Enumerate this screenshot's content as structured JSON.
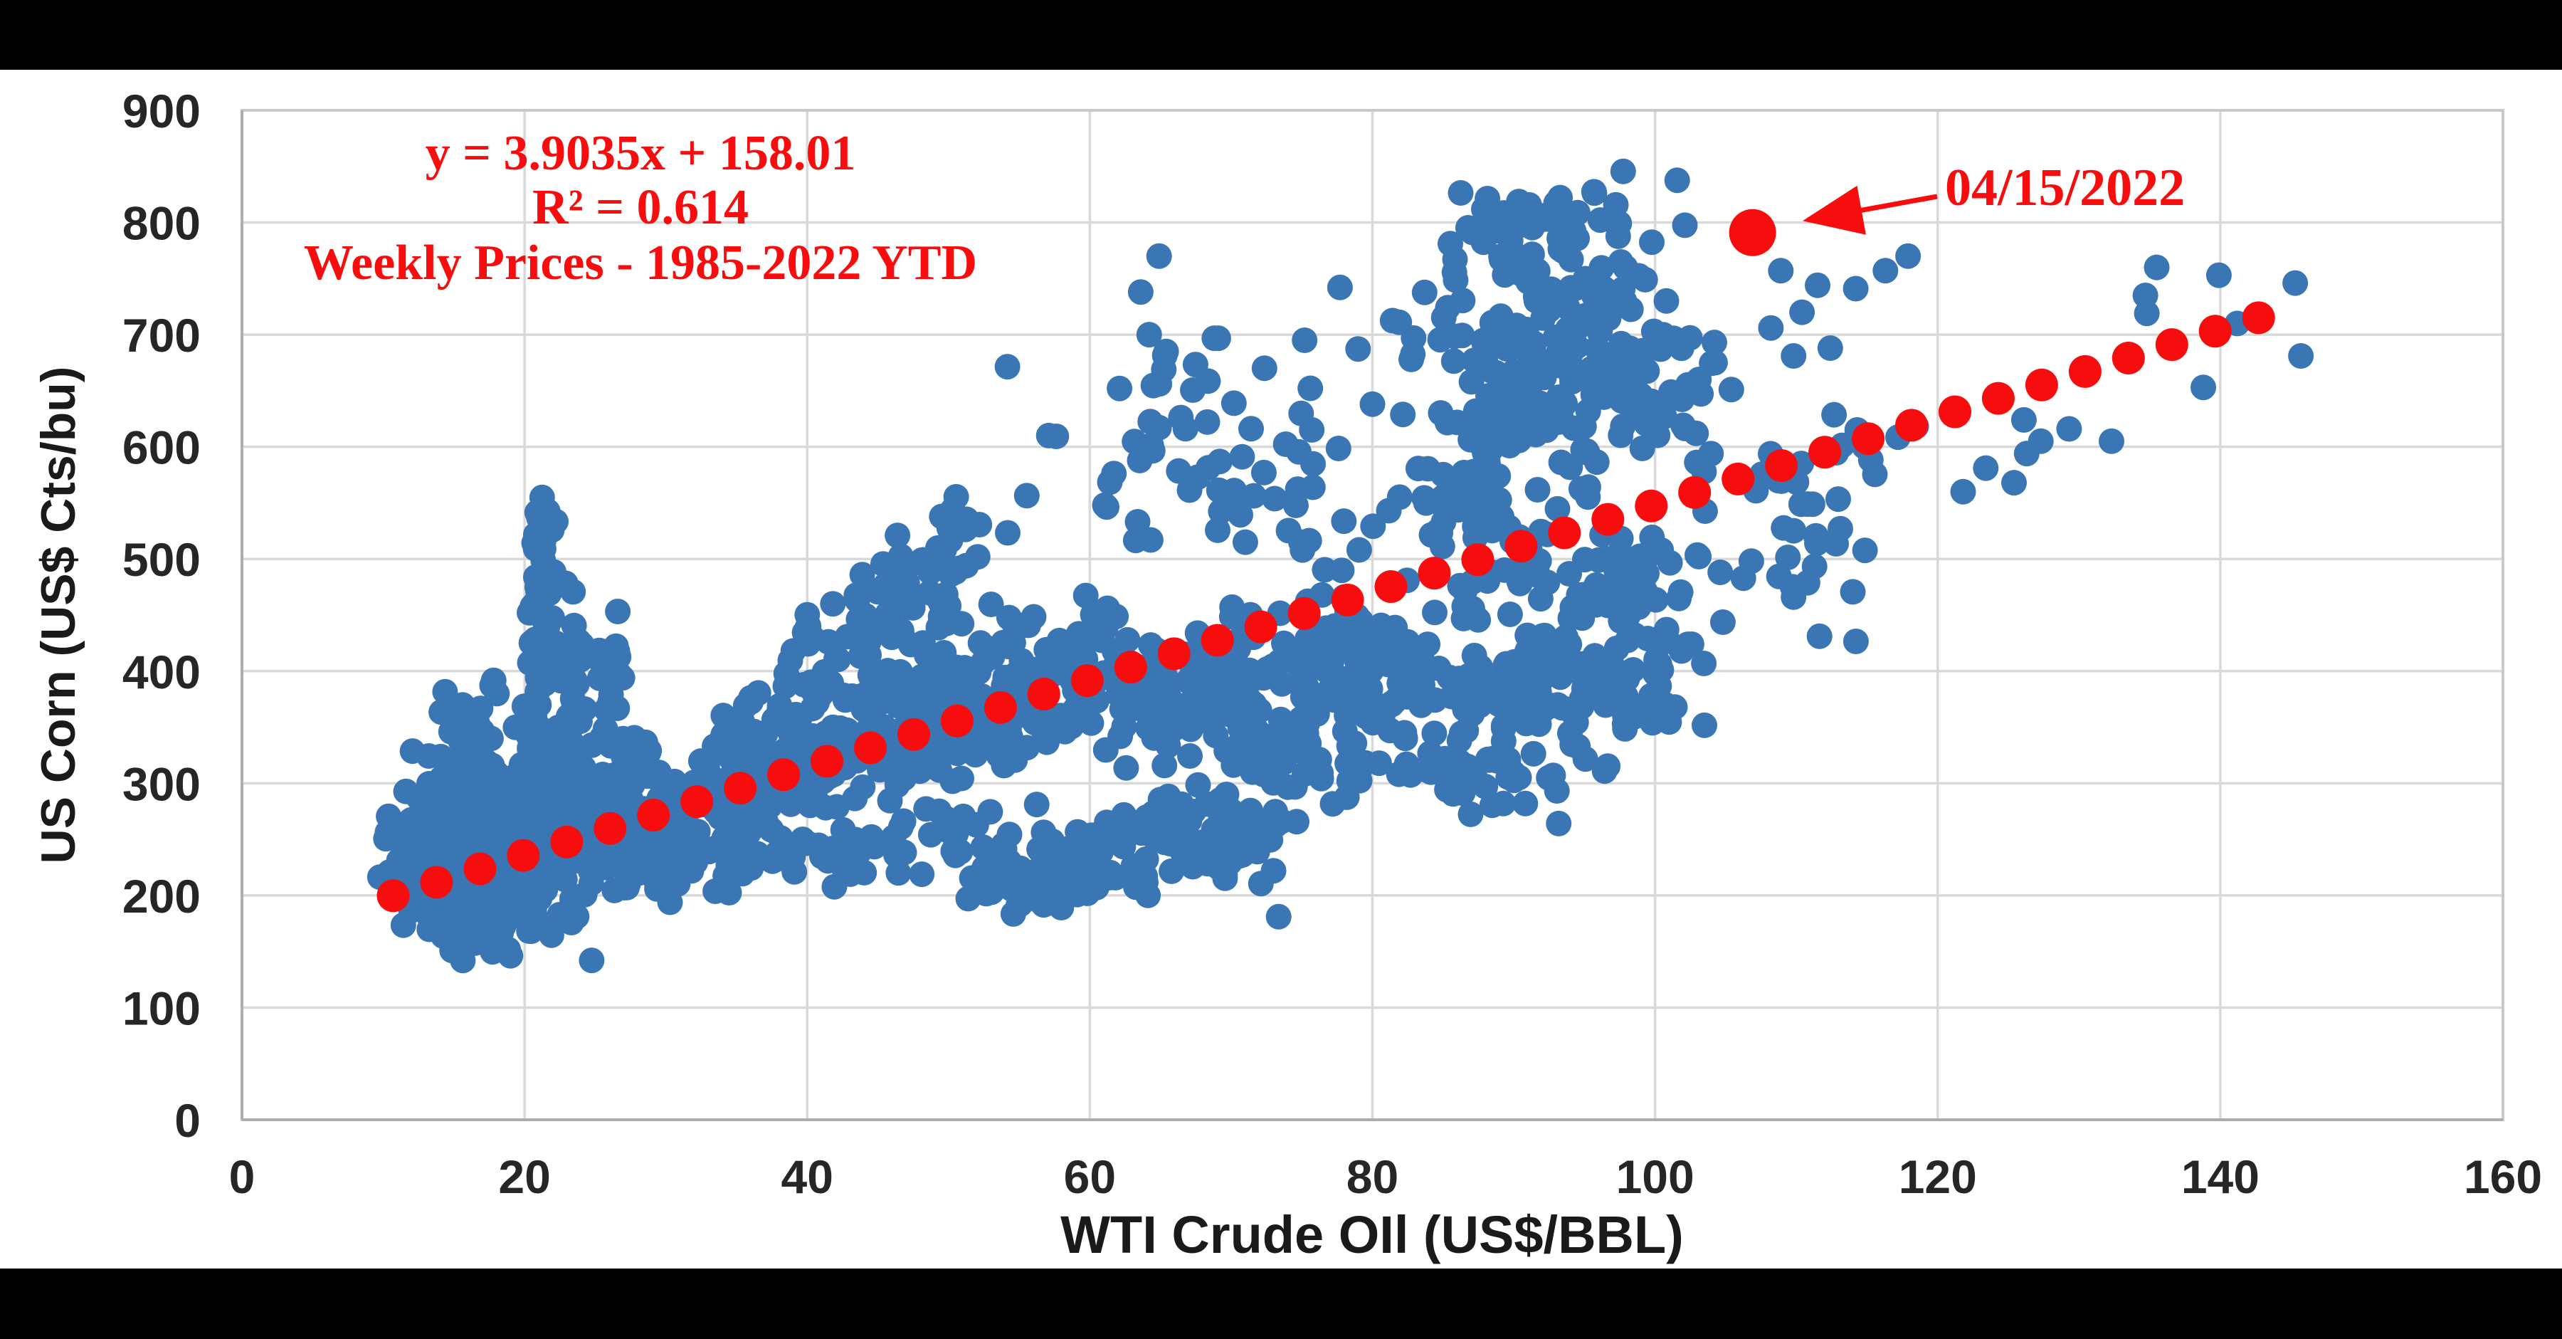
{
  "figure": {
    "background": "#000000",
    "panel_background": "#ffffff"
  },
  "colors": {
    "point_blue": "#3b76b4",
    "accent_red": "#f70d0d",
    "gridline": "#d9d9d9",
    "axis_line": "#b3b3b3",
    "tick_text": "#262626"
  },
  "chart_data": {
    "type": "scatter",
    "title": "",
    "xlabel": "WTI Crude OIl (US$/BBL)",
    "ylabel": "US Corn (US$ Cts/bu)",
    "xlim": [
      0,
      160
    ],
    "ylim": [
      0,
      900
    ],
    "xticks": [
      0,
      20,
      40,
      60,
      80,
      100,
      120,
      140,
      160
    ],
    "yticks": [
      0,
      100,
      200,
      300,
      400,
      500,
      600,
      700,
      800,
      900
    ],
    "grid": true,
    "legend": "none",
    "annotations": {
      "equation": "y = 3.9035x + 158.01",
      "r_squared": "R² = 0.614",
      "caption": "Weekly Prices - 1985-2022 YTD",
      "highlight_label": "04/15/2022"
    },
    "trendline": {
      "slope": 3.9035,
      "intercept": 158.01,
      "x_start": 10.7,
      "x_end": 145.5,
      "dot_step": 3.07
    },
    "highlight_point": {
      "x": 106.9,
      "y": 791,
      "label": "04/15/2022"
    },
    "series_name": "Weekly WTI vs US Corn prices, 1985-2022 YTD",
    "random_seed": 1337,
    "points_explicit": [
      [
        64.9,
        770
      ],
      [
        63.6,
        738
      ],
      [
        64.2,
        700
      ],
      [
        65.4,
        685
      ],
      [
        62.1,
        652
      ],
      [
        80.0,
        638
      ],
      [
        81.9,
        711
      ],
      [
        75.2,
        695
      ],
      [
        108.9,
        757
      ],
      [
        111.5,
        744
      ],
      [
        114.2,
        741
      ],
      [
        110.4,
        720
      ],
      [
        108.2,
        706
      ],
      [
        104.2,
        693
      ],
      [
        103.1,
        660
      ],
      [
        105.4,
        651
      ],
      [
        102.9,
        612
      ],
      [
        109.8,
        681
      ],
      [
        116.3,
        757
      ],
      [
        117.9,
        770
      ],
      [
        112.4,
        688
      ],
      [
        99.3,
        749
      ],
      [
        97.9,
        760
      ],
      [
        96.4,
        741
      ],
      [
        100.8,
        730
      ],
      [
        139.9,
        753
      ],
      [
        145.3,
        746
      ],
      [
        134.7,
        735
      ],
      [
        134.8,
        719
      ],
      [
        145.7,
        681
      ],
      [
        138.8,
        653
      ],
      [
        126.1,
        624
      ],
      [
        129.3,
        616
      ],
      [
        127.3,
        605
      ],
      [
        126.3,
        594
      ],
      [
        132.3,
        605
      ],
      [
        123.4,
        581
      ],
      [
        125.4,
        568
      ],
      [
        121.8,
        560
      ],
      [
        135.5,
        760
      ],
      [
        141.2,
        710
      ]
    ],
    "point_clusters": [
      {
        "type": "gauss",
        "cx": 15.5,
        "cy": 245,
        "sx": 2.2,
        "sy": 32,
        "n": 230
      },
      {
        "type": "gauss",
        "cx": 19.5,
        "cy": 255,
        "sx": 2.6,
        "sy": 38,
        "n": 200
      },
      {
        "type": "gauss",
        "cx": 13.8,
        "cy": 222,
        "sx": 1.6,
        "sy": 26,
        "n": 110
      },
      {
        "type": "gauss",
        "cx": 17.0,
        "cy": 172,
        "sx": 2.2,
        "sy": 14,
        "n": 60
      },
      {
        "type": "gauss",
        "cx": 24.0,
        "cy": 265,
        "sx": 2.0,
        "sy": 30,
        "n": 80
      },
      {
        "type": "gauss",
        "cx": 17.0,
        "cy": 345,
        "sx": 1.8,
        "sy": 25,
        "n": 25
      },
      {
        "type": "gauss",
        "cx": 21.2,
        "cy": 420,
        "sx": 0.55,
        "sy": 68,
        "n": 55
      },
      {
        "type": "gauss",
        "cx": 21.4,
        "cy": 530,
        "sx": 0.5,
        "sy": 15,
        "n": 10
      },
      {
        "type": "gauss",
        "cx": 23.2,
        "cy": 395,
        "sx": 0.6,
        "sy": 40,
        "n": 22
      },
      {
        "type": "gauss",
        "cx": 25.8,
        "cy": 350,
        "sx": 1.2,
        "sy": 45,
        "n": 35
      },
      {
        "type": "band",
        "x0": 26,
        "x1": 36,
        "slope": 4.5,
        "intercept": 140,
        "jitter": 26,
        "n": 110
      },
      {
        "type": "band",
        "x0": 34,
        "x1": 62,
        "slope": 3.6,
        "intercept": 196,
        "jitter": 27,
        "n": 290
      },
      {
        "type": "band",
        "x0": 36,
        "x1": 60,
        "slope": 3.6,
        "intercept": 150,
        "jitter": 20,
        "n": 80
      },
      {
        "type": "band",
        "x0": 62,
        "x1": 80,
        "slope": 1.8,
        "intercept": 262,
        "jitter": 27,
        "n": 190
      },
      {
        "type": "gauss",
        "cx": 72,
        "cy": 320,
        "sx": 5,
        "sy": 18,
        "n": 45
      },
      {
        "type": "gauss",
        "cx": 82,
        "cy": 390,
        "sx": 2,
        "sy": 25,
        "n": 40
      },
      {
        "type": "band",
        "x0": 28,
        "x1": 52,
        "slope": 0.8,
        "intercept": 205,
        "jitter": 16,
        "n": 95
      },
      {
        "type": "band",
        "x0": 52,
        "x1": 74,
        "slope": 1.1,
        "intercept": 165,
        "jitter": 17,
        "n": 130
      },
      {
        "type": "gauss",
        "cx": 67,
        "cy": 270,
        "sx": 4,
        "sy": 14,
        "n": 35
      },
      {
        "type": "gauss",
        "cx": 57,
        "cy": 205,
        "sx": 3,
        "sy": 10,
        "n": 25
      },
      {
        "type": "gauss",
        "cx": 41,
        "cy": 430,
        "sx": 2,
        "sy": 18,
        "n": 18
      },
      {
        "type": "gauss",
        "cx": 47.5,
        "cy": 468,
        "sx": 2.2,
        "sy": 26,
        "n": 50
      },
      {
        "type": "gauss",
        "cx": 50,
        "cy": 520,
        "sx": 1.2,
        "sy": 22,
        "n": 14
      },
      {
        "type": "gauss",
        "cx": 66,
        "cy": 630,
        "sx": 4.5,
        "sy": 35,
        "n": 30
      },
      {
        "type": "gauss",
        "cx": 70,
        "cy": 545,
        "sx": 6,
        "sy": 28,
        "n": 40
      },
      {
        "type": "gauss",
        "cx": 92,
        "cy": 680,
        "sx": 4.5,
        "sy": 55,
        "n": 170
      },
      {
        "type": "gauss",
        "cx": 91.5,
        "cy": 790,
        "sx": 3,
        "sy": 25,
        "n": 40
      },
      {
        "type": "gauss",
        "cx": 99,
        "cy": 640,
        "sx": 3,
        "sy": 40,
        "n": 50
      },
      {
        "type": "gauss",
        "cx": 87,
        "cy": 560,
        "sx": 3.5,
        "sy": 30,
        "n": 45
      },
      {
        "type": "gauss",
        "cx": 95,
        "cy": 480,
        "sx": 6.5,
        "sy": 30,
        "n": 80
      },
      {
        "type": "gauss",
        "cx": 94,
        "cy": 385,
        "sx": 5.5,
        "sy": 26,
        "n": 140
      },
      {
        "type": "gauss",
        "cx": 88,
        "cy": 310,
        "sx": 4.5,
        "sy": 14,
        "n": 45
      },
      {
        "type": "gauss",
        "cx": 110,
        "cy": 540,
        "sx": 3.5,
        "sy": 40,
        "n": 26
      },
      {
        "type": "gauss",
        "cx": 113.5,
        "cy": 600,
        "sx": 2.5,
        "sy": 25,
        "n": 12
      }
    ]
  }
}
